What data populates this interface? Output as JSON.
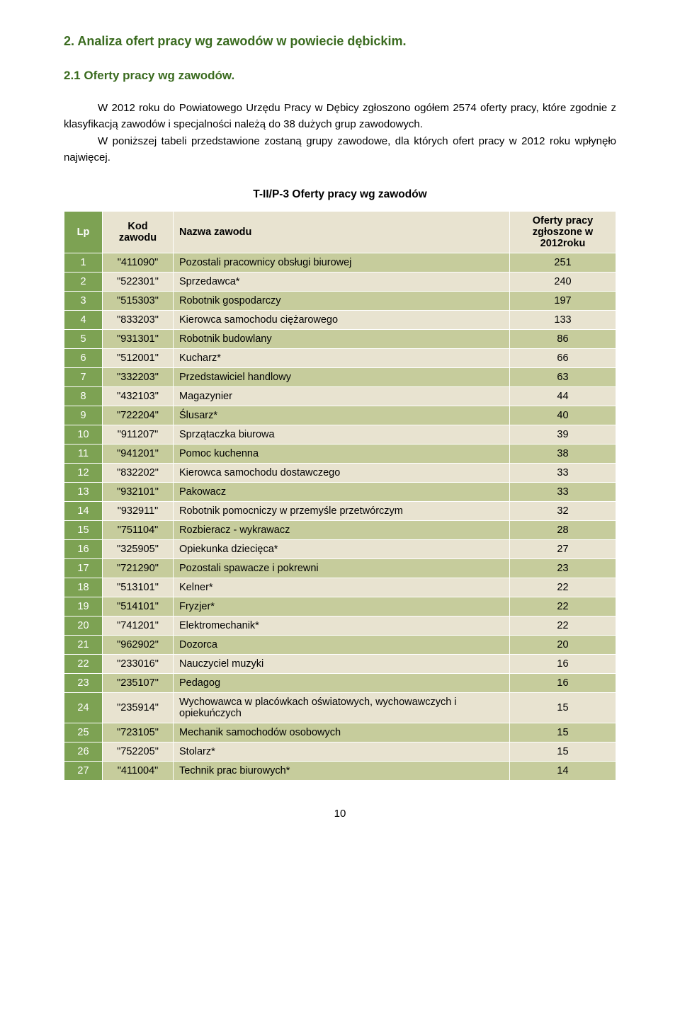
{
  "heading_main": "2. Analiza ofert pracy wg zawodów w powiecie dębickim.",
  "heading_sub": "2.1 Oferty pracy wg zawodów.",
  "paragraph1": "W 2012 roku do Powiatowego Urzędu Pracy w Dębicy zgłoszono ogółem 2574 oferty pracy, które zgodnie z klasyfikacją zawodów i specjalności należą do 38 dużych grup zawodowych.",
  "paragraph2": "W poniższej tabeli przedstawione zostaną grupy zawodowe, dla których ofert pracy w 2012 roku wpłynęło najwięcej.",
  "table_title": "T-II/P-3 Oferty pracy wg zawodów",
  "columns": {
    "lp": "Lp",
    "kod": "Kod zawodu",
    "nazwa": "Nazwa zawodu",
    "oferty": "Oferty pracy zgłoszone w 2012roku"
  },
  "colors": {
    "lp_bg": "#7da253",
    "lp_text": "#ffffff",
    "row_light": "#e8e3d0",
    "row_dark": "#c6cc9c",
    "header_bg": "#e8e3d0"
  },
  "rows": [
    {
      "lp": "1",
      "kod": "\"411090\"",
      "nazwa": "Pozostali pracownicy obsługi biurowej",
      "val": "251"
    },
    {
      "lp": "2",
      "kod": "\"522301\"",
      "nazwa": "Sprzedawca*",
      "val": "240"
    },
    {
      "lp": "3",
      "kod": "\"515303\"",
      "nazwa": "Robotnik gospodarczy",
      "val": "197"
    },
    {
      "lp": "4",
      "kod": "\"833203\"",
      "nazwa": "Kierowca samochodu ciężarowego",
      "val": "133"
    },
    {
      "lp": "5",
      "kod": "\"931301\"",
      "nazwa": "Robotnik budowlany",
      "val": "86"
    },
    {
      "lp": "6",
      "kod": "\"512001\"",
      "nazwa": "Kucharz*",
      "val": "66"
    },
    {
      "lp": "7",
      "kod": "\"332203\"",
      "nazwa": "Przedstawiciel handlowy",
      "val": "63"
    },
    {
      "lp": "8",
      "kod": "\"432103\"",
      "nazwa": "Magazynier",
      "val": "44"
    },
    {
      "lp": "9",
      "kod": "\"722204\"",
      "nazwa": "Ślusarz*",
      "val": "40"
    },
    {
      "lp": "10",
      "kod": "\"911207\"",
      "nazwa": "Sprzątaczka biurowa",
      "val": "39"
    },
    {
      "lp": "11",
      "kod": "\"941201\"",
      "nazwa": "Pomoc kuchenna",
      "val": "38"
    },
    {
      "lp": "12",
      "kod": "\"832202\"",
      "nazwa": "Kierowca samochodu dostawczego",
      "val": "33"
    },
    {
      "lp": "13",
      "kod": "\"932101\"",
      "nazwa": "Pakowacz",
      "val": "33"
    },
    {
      "lp": "14",
      "kod": "\"932911\"",
      "nazwa": "Robotnik pomocniczy w przemyśle przetwórczym",
      "val": "32"
    },
    {
      "lp": "15",
      "kod": "\"751104\"",
      "nazwa": "Rozbieracz - wykrawacz",
      "val": "28"
    },
    {
      "lp": "16",
      "kod": "\"325905\"",
      "nazwa": "Opiekunka dziecięca*",
      "val": "27"
    },
    {
      "lp": "17",
      "kod": "\"721290\"",
      "nazwa": "Pozostali spawacze i pokrewni",
      "val": "23"
    },
    {
      "lp": "18",
      "kod": "\"513101\"",
      "nazwa": "Kelner*",
      "val": "22"
    },
    {
      "lp": "19",
      "kod": "\"514101\"",
      "nazwa": "Fryzjer*",
      "val": "22"
    },
    {
      "lp": "20",
      "kod": "\"741201\"",
      "nazwa": "Elektromechanik*",
      "val": "22"
    },
    {
      "lp": "21",
      "kod": "\"962902\"",
      "nazwa": "Dozorca",
      "val": "20"
    },
    {
      "lp": "22",
      "kod": "\"233016\"",
      "nazwa": "Nauczyciel muzyki",
      "val": "16"
    },
    {
      "lp": "23",
      "kod": "\"235107\"",
      "nazwa": "Pedagog",
      "val": "16"
    },
    {
      "lp": "24",
      "kod": "\"235914\"",
      "nazwa": "Wychowawca w placówkach oświatowych, wychowawczych i opiekuńczych",
      "val": "15"
    },
    {
      "lp": "25",
      "kod": "\"723105\"",
      "nazwa": "Mechanik samochodów osobowych",
      "val": "15"
    },
    {
      "lp": "26",
      "kod": "\"752205\"",
      "nazwa": "Stolarz*",
      "val": "15"
    },
    {
      "lp": "27",
      "kod": "\"411004\"",
      "nazwa": "Technik prac biurowych*",
      "val": "14"
    }
  ],
  "page_number": "10"
}
